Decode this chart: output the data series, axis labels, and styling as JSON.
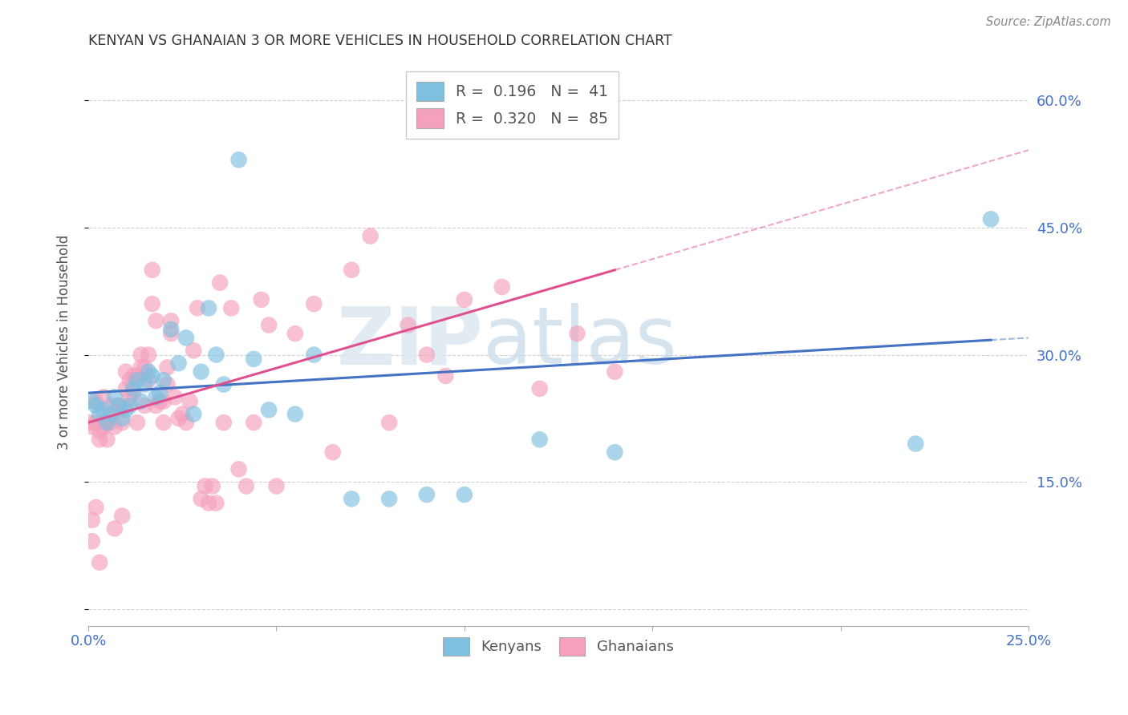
{
  "title": "KENYAN VS GHANAIAN 3 OR MORE VEHICLES IN HOUSEHOLD CORRELATION CHART",
  "source": "Source: ZipAtlas.com",
  "ylabel": "3 or more Vehicles in Household",
  "legend_label1": "Kenyans",
  "legend_label2": "Ghanaians",
  "r1": 0.196,
  "n1": 41,
  "r2": 0.32,
  "n2": 85,
  "xlim": [
    0.0,
    0.25
  ],
  "ylim": [
    -0.02,
    0.65
  ],
  "xticks": [
    0.0,
    0.05,
    0.1,
    0.15,
    0.2,
    0.25
  ],
  "xticklabels": [
    "0.0%",
    "",
    "",
    "",
    "",
    "25.0%"
  ],
  "yticks": [
    0.0,
    0.15,
    0.3,
    0.45,
    0.6
  ],
  "yticklabels": [
    "",
    "15.0%",
    "30.0%",
    "45.0%",
    "60.0%"
  ],
  "color_kenyan": "#7fbfdf",
  "color_ghanaian": "#f5a0bc",
  "color_kenyan_line": "#4472c4",
  "color_ghanaian_line": "#e05090",
  "watermark_zip": "ZIP",
  "watermark_atlas": "atlas",
  "kenyan_x": [
    0.001,
    0.002,
    0.003,
    0.004,
    0.005,
    0.006,
    0.007,
    0.008,
    0.009,
    0.01,
    0.011,
    0.012,
    0.013,
    0.014,
    0.015,
    0.016,
    0.017,
    0.018,
    0.019,
    0.02,
    0.022,
    0.024,
    0.026,
    0.028,
    0.03,
    0.032,
    0.034,
    0.036,
    0.04,
    0.044,
    0.048,
    0.055,
    0.06,
    0.07,
    0.08,
    0.09,
    0.1,
    0.12,
    0.14,
    0.22,
    0.24
  ],
  "kenyan_y": [
    0.245,
    0.24,
    0.23,
    0.235,
    0.22,
    0.23,
    0.25,
    0.24,
    0.225,
    0.235,
    0.24,
    0.26,
    0.27,
    0.245,
    0.265,
    0.28,
    0.275,
    0.25,
    0.255,
    0.27,
    0.33,
    0.29,
    0.32,
    0.23,
    0.28,
    0.355,
    0.3,
    0.265,
    0.53,
    0.295,
    0.235,
    0.23,
    0.3,
    0.13,
    0.13,
    0.135,
    0.135,
    0.2,
    0.185,
    0.195,
    0.46
  ],
  "ghanaian_x": [
    0.0,
    0.001,
    0.001,
    0.002,
    0.002,
    0.003,
    0.003,
    0.004,
    0.004,
    0.005,
    0.005,
    0.006,
    0.006,
    0.007,
    0.007,
    0.008,
    0.008,
    0.009,
    0.009,
    0.01,
    0.01,
    0.01,
    0.011,
    0.011,
    0.012,
    0.012,
    0.013,
    0.013,
    0.014,
    0.014,
    0.015,
    0.015,
    0.016,
    0.016,
    0.017,
    0.017,
    0.018,
    0.018,
    0.019,
    0.02,
    0.02,
    0.021,
    0.021,
    0.022,
    0.022,
    0.023,
    0.024,
    0.025,
    0.026,
    0.027,
    0.028,
    0.029,
    0.03,
    0.031,
    0.032,
    0.033,
    0.034,
    0.035,
    0.036,
    0.038,
    0.04,
    0.042,
    0.044,
    0.046,
    0.048,
    0.05,
    0.055,
    0.06,
    0.065,
    0.07,
    0.075,
    0.08,
    0.085,
    0.09,
    0.095,
    0.1,
    0.11,
    0.12,
    0.13,
    0.14,
    0.001,
    0.002,
    0.003,
    0.004
  ],
  "ghanaian_y": [
    0.22,
    0.215,
    0.08,
    0.22,
    0.245,
    0.21,
    0.2,
    0.215,
    0.22,
    0.22,
    0.2,
    0.24,
    0.22,
    0.215,
    0.095,
    0.235,
    0.24,
    0.11,
    0.22,
    0.28,
    0.26,
    0.24,
    0.27,
    0.25,
    0.255,
    0.275,
    0.275,
    0.22,
    0.3,
    0.285,
    0.24,
    0.285,
    0.3,
    0.27,
    0.36,
    0.4,
    0.34,
    0.24,
    0.245,
    0.22,
    0.245,
    0.285,
    0.265,
    0.34,
    0.325,
    0.25,
    0.225,
    0.23,
    0.22,
    0.245,
    0.305,
    0.355,
    0.13,
    0.145,
    0.125,
    0.145,
    0.125,
    0.385,
    0.22,
    0.355,
    0.165,
    0.145,
    0.22,
    0.365,
    0.335,
    0.145,
    0.325,
    0.36,
    0.185,
    0.4,
    0.44,
    0.22,
    0.335,
    0.3,
    0.275,
    0.365,
    0.38,
    0.26,
    0.325,
    0.28,
    0.105,
    0.12,
    0.055,
    0.25
  ]
}
